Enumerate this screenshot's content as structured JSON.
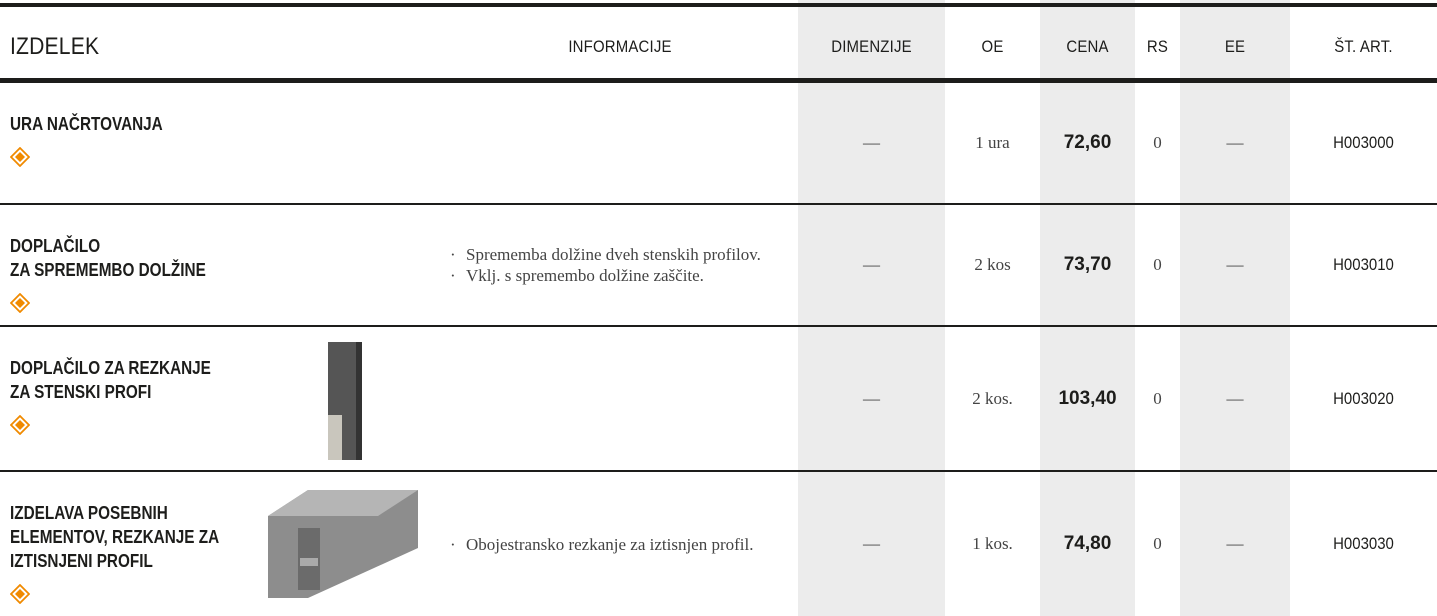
{
  "table": {
    "headers": [
      "IZDELEK",
      "INFORMACIJE",
      "DIMENZIJE",
      "OE",
      "CENA",
      "RS",
      "EE",
      "ŠT. ART."
    ],
    "rows": [
      {
        "name": [
          "URA NAČRTOVANJA"
        ],
        "info": [],
        "dimensions": "—",
        "unit": "1 ura",
        "price": "72,60",
        "rs": "0",
        "ee": "—",
        "article": "H003000"
      },
      {
        "name": [
          "DOPLAČILO",
          "ZA SPREMEMBO DOLŽINE"
        ],
        "info": [
          "Sprememba dolžine dveh stenskih profilov.",
          "Vklj. s spremembo dolžine zaščite."
        ],
        "dimensions": "—",
        "unit": "2 kos",
        "price": "73,70",
        "rs": "0",
        "ee": "—",
        "article": "H003010"
      },
      {
        "name": [
          "DOPLAČILO ZA REZKANJE",
          "ZA STENSKI PROFI"
        ],
        "info": [],
        "dimensions": "—",
        "unit": "2 kos.",
        "price": "103,40",
        "rs": "0",
        "ee": "—",
        "article": "H003020"
      },
      {
        "name": [
          "IZDELAVA POSEBNIH",
          "ELEMENTOV, REZKANJE ZA",
          "IZTISNJENI PROFIL"
        ],
        "info": [
          "Obojestransko rezkanje za iztisnjen profil."
        ],
        "dimensions": "—",
        "unit": "1 kos.",
        "price": "74,80",
        "rs": "0",
        "ee": "—",
        "article": "H003030"
      }
    ]
  }
}
